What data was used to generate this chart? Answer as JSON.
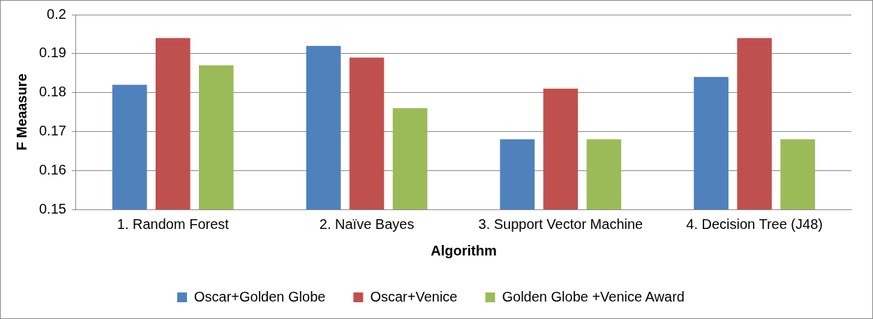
{
  "chart_data": {
    "type": "bar",
    "xlabel": "Algorithm",
    "ylabel": "F Meaasure",
    "categories": [
      "1. Random Forest",
      "2. Naïve Bayes",
      "3. Support Vector Machine",
      "4. Decision Tree (J48)"
    ],
    "series": [
      {
        "name": "Oscar+Golden Globe",
        "color": "#4f81bd",
        "values": [
          0.182,
          0.192,
          0.168,
          0.184
        ]
      },
      {
        "name": "Oscar+Venice",
        "color": "#c0504d",
        "values": [
          0.194,
          0.189,
          0.181,
          0.194
        ]
      },
      {
        "name": "Golden Globe +Venice Award",
        "color": "#9bbb59",
        "values": [
          0.187,
          0.176,
          0.168,
          0.168
        ]
      }
    ],
    "ylim": [
      0.15,
      0.2
    ],
    "yticks": [
      0.15,
      0.16,
      0.17,
      0.18,
      0.19,
      0.2
    ],
    "grid": "y",
    "legend": "bottom"
  }
}
